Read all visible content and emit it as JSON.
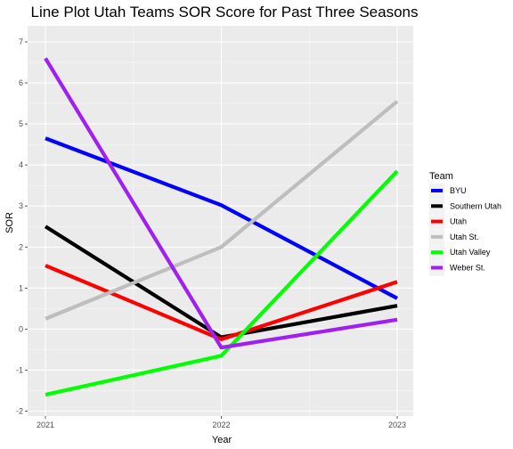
{
  "chart_data": {
    "type": "line",
    "title": "Line Plot Utah Teams SOR Score for Past Three Seasons",
    "xlabel": "Year",
    "ylabel": "SOR",
    "x": [
      2021,
      2022,
      2023
    ],
    "x_tick_labels": [
      "2021",
      "2022",
      "2023"
    ],
    "y_ticks": [
      -2,
      -1,
      0,
      1,
      2,
      3,
      4,
      5,
      6,
      7
    ],
    "y_tick_labels": [
      "-2",
      "-1",
      "0",
      "1",
      "2",
      "3",
      "4",
      "5",
      "6",
      "7"
    ],
    "ylim": [
      -2,
      7
    ],
    "grid": true,
    "legend": {
      "title": "Team",
      "position": "right"
    },
    "series": [
      {
        "name": "BYU",
        "color": "#0000ff",
        "values": [
          4.65,
          3.02,
          0.75
        ]
      },
      {
        "name": "Southern Utah",
        "color": "#000000",
        "values": [
          2.5,
          -0.2,
          0.57
        ]
      },
      {
        "name": "Utah",
        "color": "#ff0000",
        "values": [
          1.55,
          -0.25,
          1.15
        ]
      },
      {
        "name": "Utah St.",
        "color": "#bebebe",
        "values": [
          0.25,
          2.0,
          5.55
        ]
      },
      {
        "name": "Utah Valley",
        "color": "#00ff00",
        "values": [
          -1.6,
          -0.65,
          3.85
        ]
      },
      {
        "name": "Weber St.",
        "color": "#a020f0",
        "values": [
          6.6,
          -0.45,
          0.23
        ]
      }
    ]
  }
}
